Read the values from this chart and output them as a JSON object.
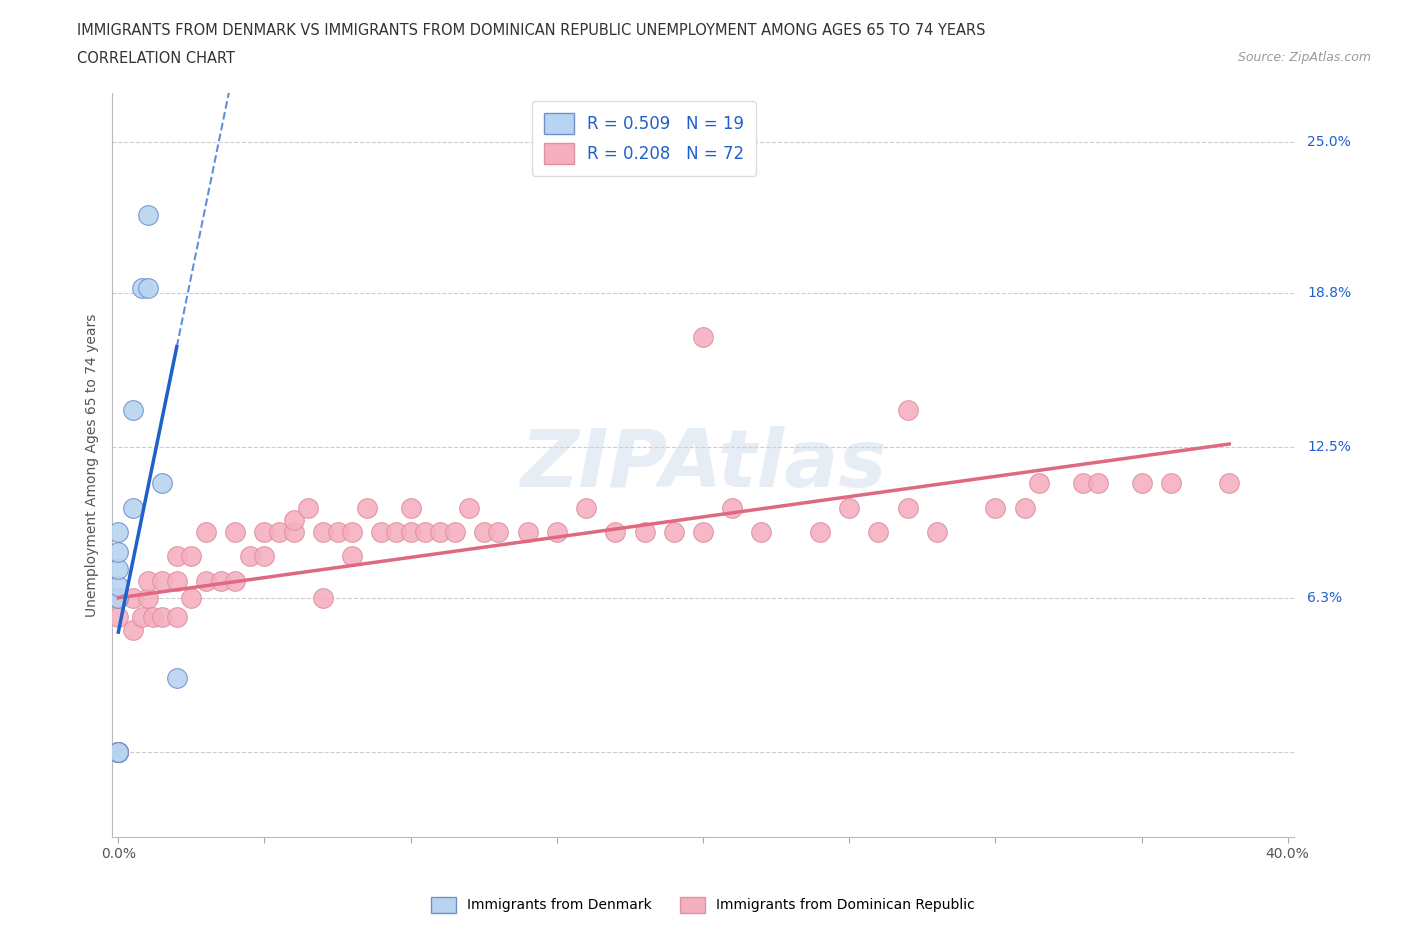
{
  "title_line1": "IMMIGRANTS FROM DENMARK VS IMMIGRANTS FROM DOMINICAN REPUBLIC UNEMPLOYMENT AMONG AGES 65 TO 74 YEARS",
  "title_line2": "CORRELATION CHART",
  "source": "Source: ZipAtlas.com",
  "ylabel": "Unemployment Among Ages 65 to 74 years",
  "xlim": [
    -0.002,
    0.402
  ],
  "ylim": [
    -0.035,
    0.27
  ],
  "xticks": [
    0.0,
    0.05,
    0.1,
    0.15,
    0.2,
    0.25,
    0.3,
    0.35,
    0.4
  ],
  "xtick_labels": [
    "0.0%",
    "",
    "",
    "",
    "",
    "",
    "",
    "",
    "40.0%"
  ],
  "ytick_vals": [
    0.0,
    0.063,
    0.125,
    0.188,
    0.25
  ],
  "ytick_labels": [
    "",
    "6.3%",
    "12.5%",
    "18.8%",
    "25.0%"
  ],
  "denmark_color": "#b8d4f0",
  "dominican_color": "#f5b0c0",
  "denmark_line_color": "#2060cc",
  "dominican_line_color": "#e06880",
  "denmark_R": 0.509,
  "denmark_N": 19,
  "dominican_R": 0.208,
  "dominican_N": 72,
  "denmark_x": [
    0.0,
    0.0,
    0.0,
    0.0,
    0.0,
    0.0,
    0.0,
    0.0,
    0.0,
    0.0,
    0.0,
    0.0,
    0.005,
    0.005,
    0.008,
    0.01,
    0.01,
    0.015,
    0.02
  ],
  "denmark_y": [
    0.0,
    0.0,
    0.0,
    0.0,
    0.0,
    0.0,
    0.0,
    0.063,
    0.068,
    0.075,
    0.082,
    0.09,
    0.1,
    0.14,
    0.19,
    0.22,
    0.19,
    0.11,
    0.03
  ],
  "dominican_x": [
    0.0,
    0.0,
    0.0,
    0.0,
    0.0,
    0.0,
    0.0,
    0.005,
    0.005,
    0.008,
    0.01,
    0.01,
    0.012,
    0.015,
    0.015,
    0.02,
    0.02,
    0.02,
    0.025,
    0.025,
    0.03,
    0.03,
    0.035,
    0.04,
    0.04,
    0.045,
    0.05,
    0.05,
    0.055,
    0.06,
    0.06,
    0.065,
    0.07,
    0.07,
    0.075,
    0.08,
    0.08,
    0.085,
    0.09,
    0.095,
    0.1,
    0.1,
    0.105,
    0.11,
    0.115,
    0.12,
    0.125,
    0.13,
    0.14,
    0.15,
    0.16,
    0.17,
    0.18,
    0.19,
    0.2,
    0.21,
    0.22,
    0.24,
    0.25,
    0.26,
    0.27,
    0.28,
    0.3,
    0.31,
    0.315,
    0.33,
    0.335,
    0.35,
    0.36,
    0.38,
    0.2,
    0.27
  ],
  "dominican_y": [
    0.0,
    0.0,
    0.0,
    0.0,
    0.055,
    0.063,
    0.063,
    0.05,
    0.063,
    0.055,
    0.063,
    0.07,
    0.055,
    0.055,
    0.07,
    0.055,
    0.07,
    0.08,
    0.063,
    0.08,
    0.07,
    0.09,
    0.07,
    0.07,
    0.09,
    0.08,
    0.09,
    0.08,
    0.09,
    0.09,
    0.095,
    0.1,
    0.063,
    0.09,
    0.09,
    0.08,
    0.09,
    0.1,
    0.09,
    0.09,
    0.09,
    0.1,
    0.09,
    0.09,
    0.09,
    0.1,
    0.09,
    0.09,
    0.09,
    0.09,
    0.1,
    0.09,
    0.09,
    0.09,
    0.09,
    0.1,
    0.09,
    0.09,
    0.1,
    0.09,
    0.1,
    0.09,
    0.1,
    0.1,
    0.11,
    0.11,
    0.11,
    0.11,
    0.11,
    0.11,
    0.17,
    0.14
  ]
}
